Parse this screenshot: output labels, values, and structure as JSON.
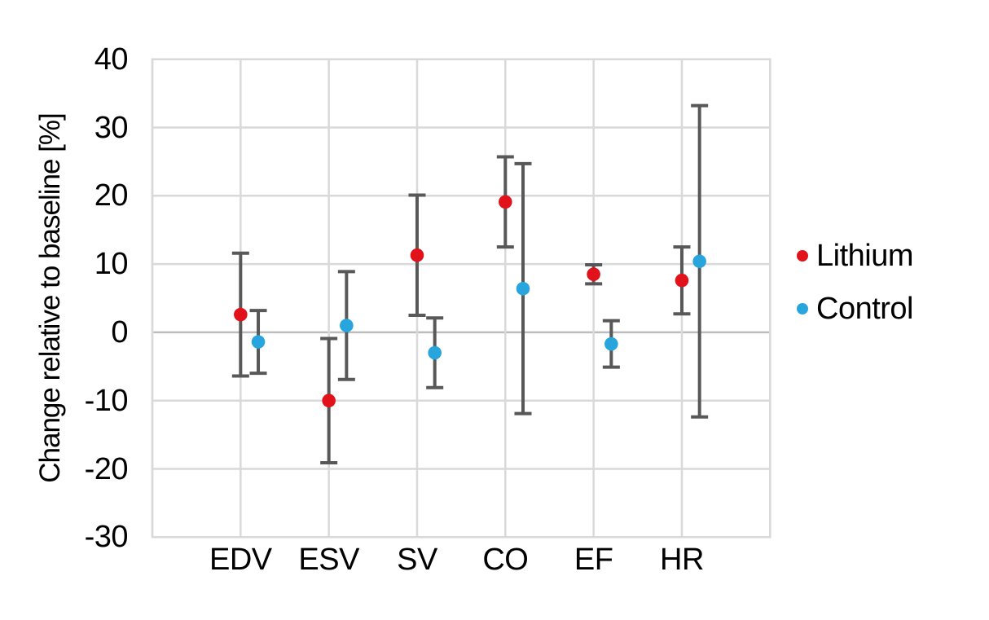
{
  "chart_data": {
    "type": "scatter",
    "subtype": "points-with-error-bars",
    "title": "",
    "xlabel": "",
    "ylabel": "Change relative to baseline [%]",
    "categories": [
      "EDV",
      "ESV",
      "SV",
      "CO",
      "EF",
      "HR"
    ],
    "yticks": [
      40,
      30,
      20,
      10,
      0,
      -10,
      -20,
      -30
    ],
    "ylim": [
      -30,
      40
    ],
    "grid": true,
    "legend_position": "right",
    "series": [
      {
        "name": "Lithium",
        "color": "#e2121b",
        "values": [
          2.6,
          -10.0,
          11.3,
          19.1,
          8.5,
          7.6
        ],
        "errors": [
          9.0,
          9.1,
          8.8,
          6.6,
          1.4,
          4.9
        ]
      },
      {
        "name": "Control",
        "color": "#29a5dd",
        "values": [
          -1.4,
          1.0,
          -3.0,
          6.4,
          -1.7,
          10.4
        ],
        "errors": [
          4.6,
          7.9,
          5.1,
          18.3,
          3.4,
          22.8
        ]
      }
    ],
    "colors": {
      "errorbar": "#585858",
      "gridline": "#d9d9d9",
      "zero_line": "#bdbdbd",
      "plot_border": "#d9d9d9",
      "text": "#000000"
    }
  },
  "legend": {
    "items": [
      {
        "label": "Lithium",
        "color": "#e2121b"
      },
      {
        "label": "Control",
        "color": "#29a5dd"
      }
    ]
  }
}
